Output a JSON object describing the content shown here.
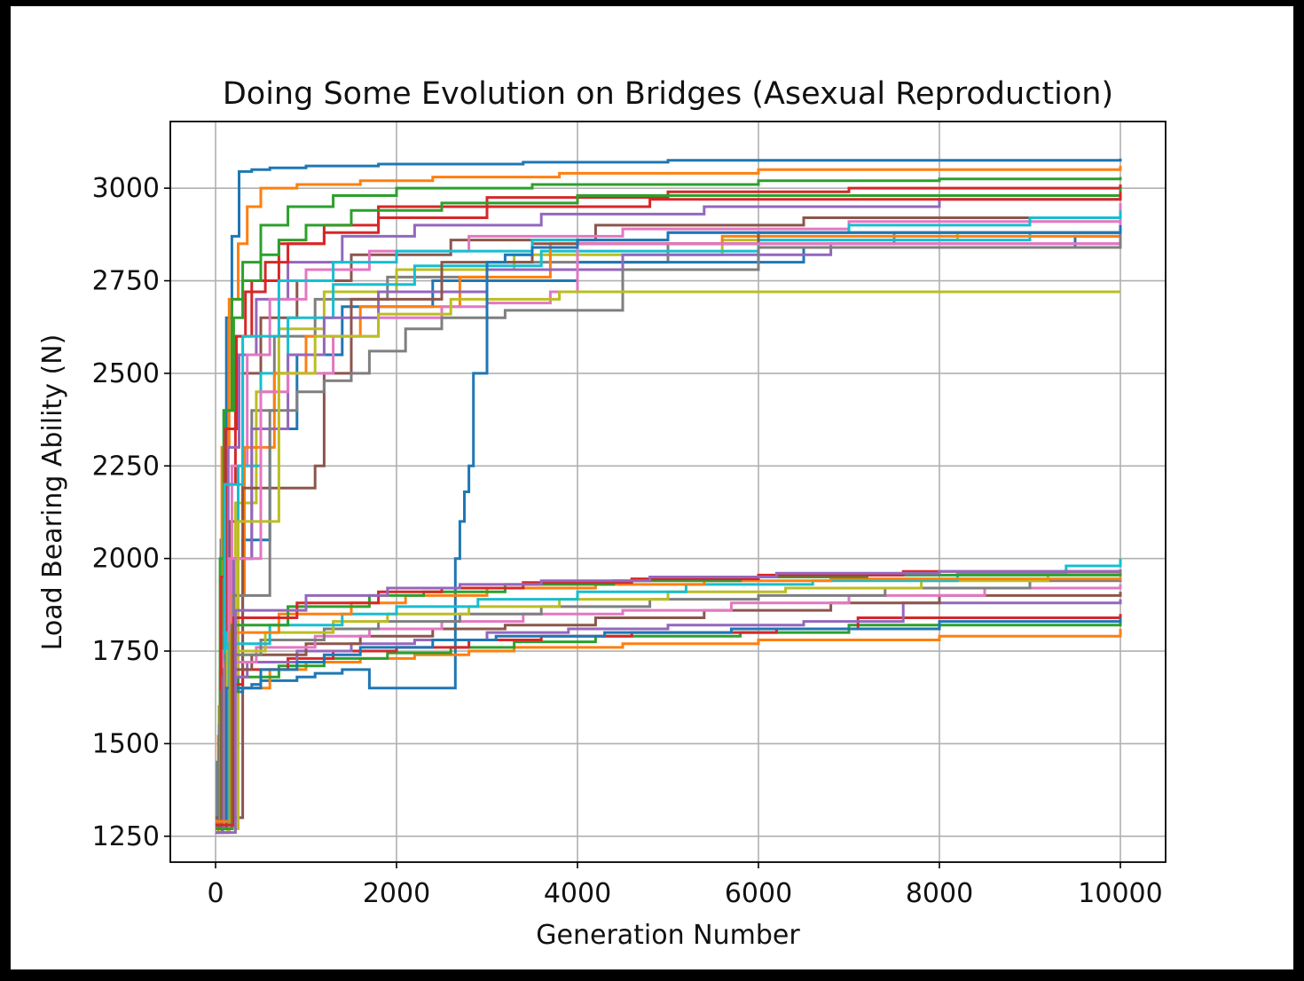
{
  "chart_data": {
    "type": "line",
    "title": "Doing Some Evolution on Bridges (Asexual Reproduction)",
    "xlabel": "Generation Number",
    "ylabel": "Load Bearing Ability (N)",
    "xlim": [
      -500,
      10500
    ],
    "ylim": [
      1180,
      3180
    ],
    "xticks": [
      0,
      2000,
      4000,
      6000,
      8000,
      10000
    ],
    "yticks": [
      1250,
      1500,
      1750,
      2000,
      2250,
      2500,
      2750,
      3000
    ],
    "xtick_labels": [
      "0",
      "2000",
      "4000",
      "6000",
      "8000",
      "10000"
    ],
    "ytick_labels": [
      "1250",
      "1500",
      "1750",
      "2000",
      "2250",
      "2500",
      "2750",
      "3000"
    ],
    "grid": true,
    "legend": "none",
    "colors": [
      "#1f77b4",
      "#ff7f0e",
      "#2ca02c",
      "#d62728",
      "#9467bd",
      "#8c564b",
      "#e377c2",
      "#7f7f7f",
      "#bcbd22",
      "#17becf"
    ],
    "series": [
      {
        "x": [
          0,
          20,
          60,
          120,
          180,
          260,
          400,
          600,
          1000,
          1800,
          3400,
          5000,
          10000
        ],
        "y": [
          1270,
          1450,
          2050,
          2650,
          2870,
          3045,
          3050,
          3055,
          3060,
          3065,
          3070,
          3075,
          3080
        ]
      },
      {
        "x": [
          0,
          30,
          70,
          150,
          250,
          350,
          500,
          900,
          1600,
          2400,
          3800,
          6000,
          10000
        ],
        "y": [
          1260,
          1520,
          2300,
          2700,
          2850,
          2950,
          3000,
          3010,
          3020,
          3030,
          3040,
          3050,
          3060
        ]
      },
      {
        "x": [
          0,
          40,
          90,
          180,
          300,
          500,
          800,
          1300,
          2000,
          3500,
          6000,
          8000,
          10000
        ],
        "y": [
          1280,
          1600,
          2400,
          2700,
          2800,
          2900,
          2950,
          2980,
          3000,
          3010,
          3020,
          3025,
          3030
        ]
      },
      {
        "x": [
          0,
          50,
          120,
          220,
          400,
          700,
          1200,
          1800,
          3000,
          5000,
          7000,
          10000
        ],
        "y": [
          1300,
          1700,
          2200,
          2600,
          2750,
          2850,
          2900,
          2950,
          2975,
          2990,
          3000,
          3010
        ]
      },
      {
        "x": [
          0,
          60,
          140,
          260,
          450,
          800,
          1400,
          2200,
          3600,
          5400,
          8000,
          10000
        ],
        "y": [
          1270,
          1800,
          2300,
          2550,
          2700,
          2800,
          2870,
          2900,
          2930,
          2950,
          2970,
          2990
        ]
      },
      {
        "x": [
          0,
          70,
          160,
          300,
          500,
          900,
          1500,
          2600,
          4200,
          6500,
          10000
        ],
        "y": [
          1260,
          1650,
          2100,
          2500,
          2650,
          2750,
          2820,
          2860,
          2900,
          2920,
          2950
        ]
      },
      {
        "x": [
          0,
          80,
          180,
          350,
          600,
          1000,
          1700,
          2800,
          4500,
          7000,
          10000
        ],
        "y": [
          1290,
          1750,
          2250,
          2550,
          2700,
          2780,
          2830,
          2870,
          2890,
          2910,
          2930
        ]
      },
      {
        "x": [
          0,
          90,
          200,
          400,
          650,
          1100,
          1900,
          3000,
          5000,
          7500,
          10000
        ],
        "y": [
          1280,
          1600,
          2000,
          2400,
          2600,
          2700,
          2760,
          2800,
          2850,
          2880,
          2910
        ]
      },
      {
        "x": [
          0,
          100,
          220,
          450,
          700,
          1200,
          2000,
          3300,
          5600,
          8200,
          10000
        ],
        "y": [
          1270,
          1700,
          2150,
          2450,
          2620,
          2720,
          2780,
          2820,
          2860,
          2880,
          2900
        ]
      },
      {
        "x": [
          0,
          120,
          250,
          500,
          800,
          1300,
          2200,
          3600,
          6000,
          9000,
          10000
        ],
        "y": [
          1300,
          1800,
          2250,
          2500,
          2650,
          2740,
          2790,
          2830,
          2860,
          2880,
          2890
        ]
      },
      {
        "x": [
          0,
          140,
          300,
          600,
          900,
          1400,
          2400,
          4000,
          6500,
          9500,
          10000
        ],
        "y": [
          1260,
          1650,
          2050,
          2350,
          2550,
          2680,
          2750,
          2800,
          2840,
          2870,
          2880
        ]
      },
      {
        "x": [
          0,
          160,
          320,
          650,
          1000,
          1600,
          2700,
          3700,
          5600,
          10000
        ],
        "y": [
          1280,
          1900,
          2300,
          2500,
          2600,
          2680,
          2760,
          2850,
          2870,
          2890
        ]
      },
      {
        "x": [
          0,
          50,
          100,
          200,
          300,
          500,
          700,
          1000,
          1500,
          2500,
          4000,
          10000
        ],
        "y": [
          1280,
          2000,
          2400,
          2650,
          2750,
          2820,
          2860,
          2900,
          2940,
          2960,
          2980,
          3000
        ]
      },
      {
        "x": [
          0,
          60,
          110,
          230,
          330,
          550,
          800,
          1200,
          1800,
          3000,
          4800,
          10000
        ],
        "y": [
          1290,
          1950,
          2350,
          2600,
          2720,
          2800,
          2850,
          2880,
          2920,
          2950,
          2970,
          2990
        ]
      },
      {
        "x": [
          0,
          200,
          400,
          800,
          1200,
          1800,
          3000,
          4500,
          6800,
          10000
        ],
        "y": [
          1270,
          2000,
          2350,
          2550,
          2650,
          2720,
          2780,
          2820,
          2850,
          2860
        ]
      },
      {
        "x": [
          0,
          300,
          600,
          900,
          1100,
          1200,
          1500,
          2500,
          3500,
          6000,
          10000
        ],
        "y": [
          1300,
          2190,
          2190,
          2190,
          2250,
          2500,
          2700,
          2800,
          2850,
          2880,
          2900
        ]
      },
      {
        "x": [
          0,
          150,
          500,
          800,
          1300,
          1800,
          2500,
          3000,
          3700,
          4000,
          10000
        ],
        "y": [
          1260,
          2000,
          2450,
          2500,
          2600,
          2650,
          2680,
          2690,
          2720,
          2850,
          2960
        ]
      },
      {
        "x": [
          0,
          200,
          600,
          900,
          1200,
          1500,
          1700,
          2100,
          2500,
          3200,
          4500,
          6000,
          10000
        ],
        "y": [
          1290,
          1900,
          2400,
          2450,
          2480,
          2500,
          2560,
          2620,
          2650,
          2670,
          2780,
          2840,
          2880
        ]
      },
      {
        "x": [
          0,
          250,
          700,
          1100,
          1800,
          2600,
          3800,
          5500,
          7600,
          10000
        ],
        "y": [
          1270,
          2100,
          2500,
          2600,
          2660,
          2700,
          2720,
          2720,
          2720,
          2720
        ]
      },
      {
        "x": [
          0,
          100,
          300,
          700,
          1300,
          2000,
          3500,
          5000,
          7000,
          9000,
          10000
        ],
        "y": [
          1280,
          2200,
          2600,
          2750,
          2800,
          2830,
          2860,
          2880,
          2900,
          2920,
          2940
        ]
      },
      {
        "x": [
          0,
          40,
          80,
          120,
          200,
          300,
          400,
          500,
          700,
          900,
          1100,
          1400,
          1700,
          2600,
          2650,
          2700,
          2750,
          2800,
          2850,
          3000,
          3200,
          3500,
          4000,
          5000,
          10000
        ],
        "y": [
          1270,
          1550,
          1600,
          1620,
          1640,
          1650,
          1660,
          1670,
          1670,
          1680,
          1690,
          1700,
          1650,
          1650,
          2000,
          2100,
          2180,
          2250,
          2500,
          2800,
          2820,
          2840,
          2860,
          2880,
          2900
        ]
      },
      {
        "x": [
          0,
          50,
          200,
          600,
          1000,
          1600,
          2200,
          2800,
          3300,
          4500,
          6000,
          8000,
          10000
        ],
        "y": [
          1280,
          1600,
          1650,
          1700,
          1720,
          1730,
          1740,
          1750,
          1760,
          1770,
          1780,
          1790,
          1810
        ]
      },
      {
        "x": [
          0,
          60,
          250,
          700,
          1200,
          1900,
          2600,
          3300,
          4200,
          5800,
          7000,
          10000
        ],
        "y": [
          1270,
          1640,
          1680,
          1710,
          1730,
          1745,
          1760,
          1775,
          1790,
          1800,
          1820,
          1830
        ]
      },
      {
        "x": [
          0,
          70,
          300,
          800,
          1300,
          2000,
          2800,
          3600,
          4600,
          6200,
          7100,
          10000
        ],
        "y": [
          1290,
          1660,
          1700,
          1730,
          1750,
          1760,
          1780,
          1790,
          1800,
          1810,
          1840,
          1850
        ]
      },
      {
        "x": [
          0,
          80,
          350,
          900,
          1500,
          2200,
          3000,
          3900,
          5000,
          6500,
          7600,
          10000
        ],
        "y": [
          1260,
          1680,
          1720,
          1750,
          1770,
          1780,
          1800,
          1810,
          1820,
          1830,
          1880,
          1890
        ]
      },
      {
        "x": [
          0,
          90,
          400,
          1000,
          1600,
          2400,
          3200,
          4200,
          5400,
          6800,
          8000,
          10000
        ],
        "y": [
          1280,
          1700,
          1740,
          1770,
          1790,
          1810,
          1820,
          1840,
          1860,
          1880,
          1900,
          1910
        ]
      },
      {
        "x": [
          0,
          100,
          450,
          1100,
          1700,
          2500,
          3400,
          4500,
          5700,
          7000,
          8500,
          10000
        ],
        "y": [
          1270,
          1720,
          1760,
          1790,
          1810,
          1830,
          1850,
          1860,
          1880,
          1900,
          1920,
          1930
        ]
      },
      {
        "x": [
          0,
          110,
          500,
          1200,
          1800,
          2700,
          3600,
          4800,
          6000,
          7400,
          9000,
          10000
        ],
        "y": [
          1290,
          1740,
          1780,
          1810,
          1830,
          1850,
          1870,
          1890,
          1900,
          1920,
          1940,
          1950
        ]
      },
      {
        "x": [
          0,
          130,
          550,
          1300,
          1900,
          2800,
          3800,
          5000,
          6300,
          7800,
          9200,
          10000
        ],
        "y": [
          1260,
          1750,
          1800,
          1830,
          1850,
          1870,
          1890,
          1910,
          1920,
          1940,
          1960,
          1970
        ]
      },
      {
        "x": [
          0,
          150,
          600,
          1400,
          2000,
          2900,
          4000,
          5200,
          6600,
          8200,
          9400,
          10000
        ],
        "y": [
          1280,
          1770,
          1820,
          1850,
          1870,
          1890,
          1910,
          1930,
          1940,
          1960,
          1980,
          2000
        ]
      },
      {
        "x": [
          0,
          120,
          500,
          900,
          1200,
          1600,
          2400,
          3100,
          4300,
          5700,
          8000,
          10000
        ],
        "y": [
          1270,
          1650,
          1700,
          1720,
          1740,
          1760,
          1780,
          1790,
          1800,
          1810,
          1830,
          1840
        ]
      },
      {
        "x": [
          0,
          160,
          700,
          1500,
          2100,
          3000,
          4200,
          5400,
          6800,
          10000
        ],
        "y": [
          1290,
          1800,
          1850,
          1880,
          1900,
          1920,
          1930,
          1940,
          1945,
          1950
        ]
      },
      {
        "x": [
          0,
          180,
          800,
          1700,
          2300,
          3200,
          4400,
          5800,
          7200,
          10000
        ],
        "y": [
          1270,
          1820,
          1870,
          1900,
          1910,
          1930,
          1940,
          1950,
          1955,
          1960
        ]
      },
      {
        "x": [
          0,
          200,
          900,
          1800,
          2500,
          3400,
          4600,
          6000,
          7600,
          10000
        ],
        "y": [
          1280,
          1840,
          1880,
          1910,
          1920,
          1935,
          1945,
          1955,
          1965,
          1970
        ]
      },
      {
        "x": [
          0,
          220,
          1000,
          1900,
          2700,
          3600,
          4800,
          6200,
          8000,
          10000
        ],
        "y": [
          1260,
          1860,
          1900,
          1920,
          1930,
          1940,
          1950,
          1960,
          1965,
          1970
        ]
      }
    ]
  }
}
